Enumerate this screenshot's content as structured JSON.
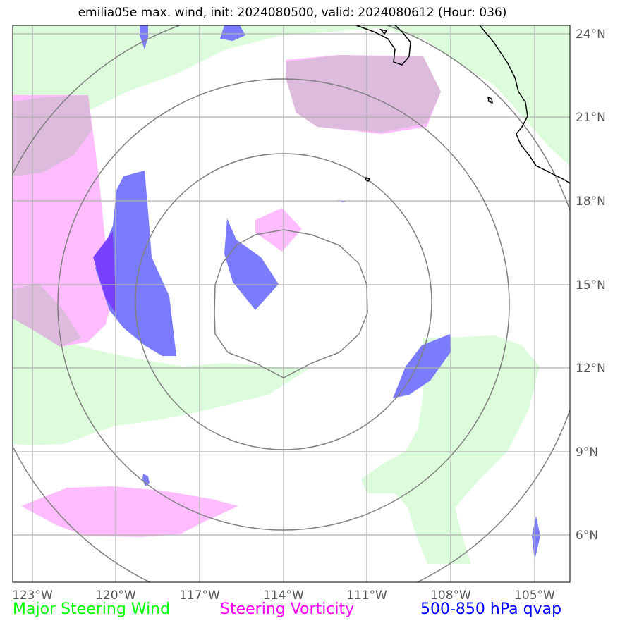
{
  "title": "emilia05e max. wind, init: 2024080500, valid: 2024080612 (Hour: 036)",
  "lon_ticks": [
    "123°W",
    "120°W",
    "117°W",
    "114°W",
    "111°W",
    "108°W",
    "105°W"
  ],
  "lat_ticks": [
    "24°N",
    "21°N",
    "18°N",
    "15°N",
    "12°N",
    "9°N",
    "6°N"
  ],
  "legend": [
    {
      "label": "Major Steering Wind",
      "color": "#00ff00"
    },
    {
      "label": "Steering Vorticity",
      "color": "#ff00ff"
    },
    {
      "label": "500-850 hPa qvap",
      "color": "#0000ff"
    }
  ],
  "colors": {
    "wind_fill": "#dcfcdc",
    "vorticity_fill": "#ffbdff",
    "overlap_fill": "#ddbbdd",
    "qvap_fill": "#7b7bff",
    "qvap_dark": "#7a40ff",
    "range_ring": "#808080",
    "grid": "#b0b0b0",
    "coastline": "#000000"
  },
  "range_rings": {
    "count": 4,
    "center": "114°W 15°N"
  }
}
